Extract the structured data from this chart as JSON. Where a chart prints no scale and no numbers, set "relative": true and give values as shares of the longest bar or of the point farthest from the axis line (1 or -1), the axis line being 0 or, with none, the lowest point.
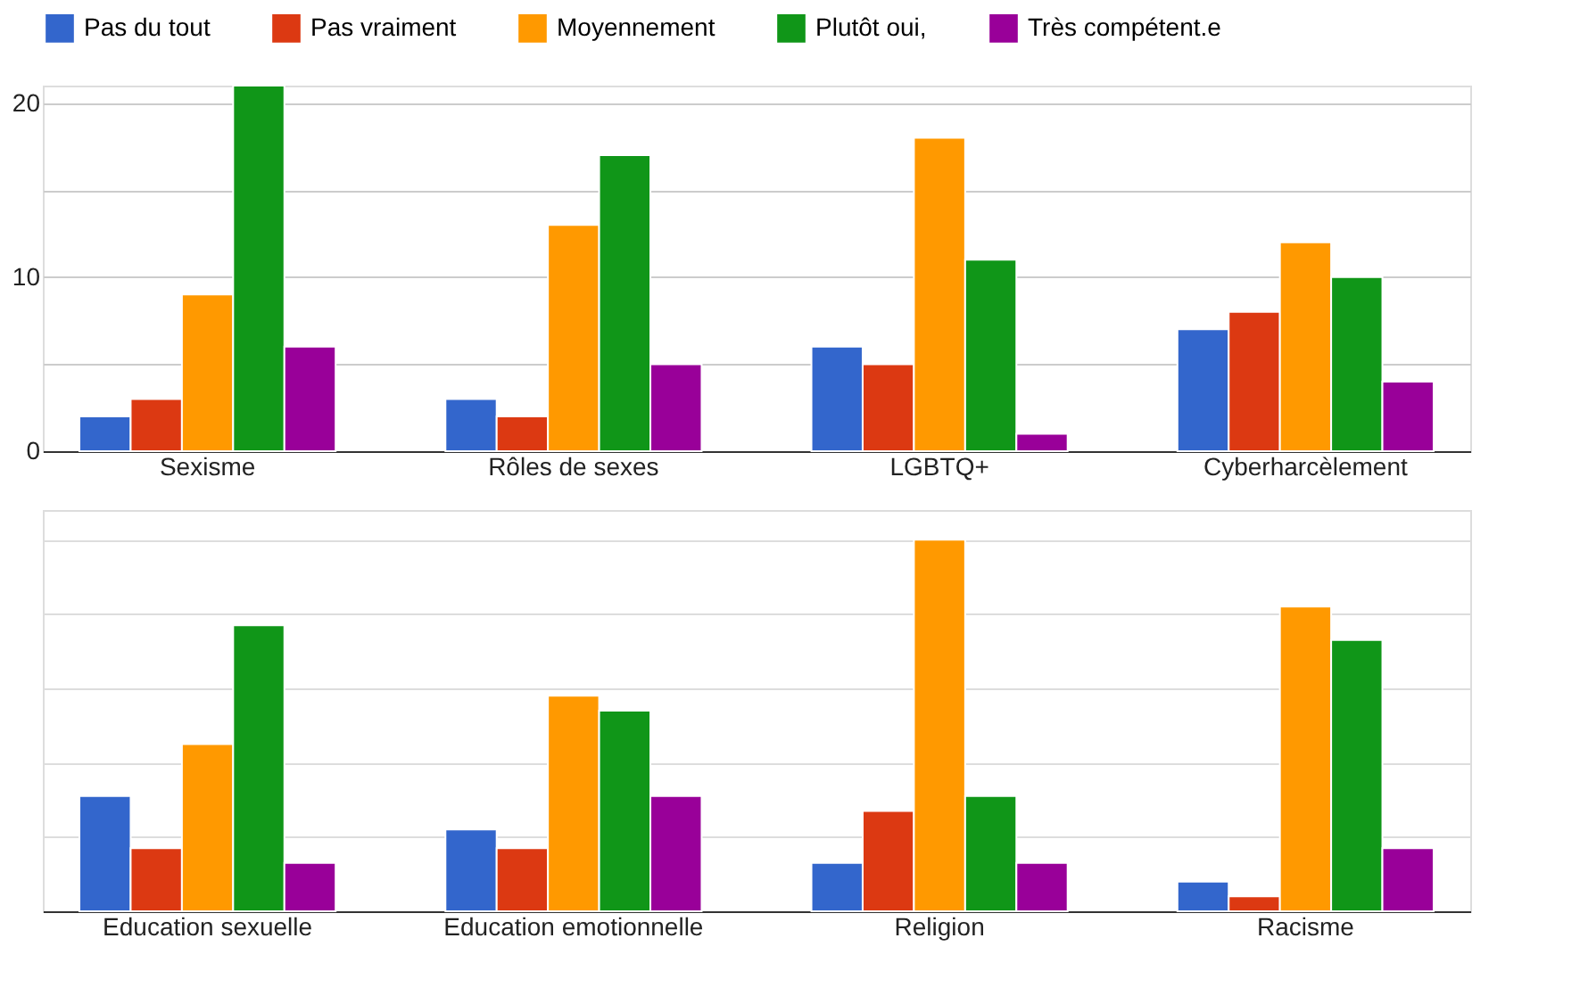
{
  "chart_data": [
    {
      "type": "bar",
      "categories": [
        "Sexisme",
        "Rôles de sexes",
        "LGBTQ+",
        "Cyberharcèlement"
      ],
      "series": [
        {
          "name": "Pas du tout",
          "color": "#3366cc",
          "values": [
            2,
            3,
            6,
            7
          ]
        },
        {
          "name": "Pas vraiment",
          "color": "#dc3912",
          "values": [
            3,
            2,
            5,
            8
          ]
        },
        {
          "name": "Moyennement",
          "color": "#ff9900",
          "values": [
            9,
            13,
            18,
            12
          ]
        },
        {
          "name": "Plutôt oui,",
          "color": "#109618",
          "values": [
            21,
            17,
            11,
            10
          ]
        },
        {
          "name": "Très compétent.e",
          "color": "#990099",
          "values": [
            6,
            5,
            1,
            4
          ]
        }
      ],
      "ylim": [
        0,
        21
      ],
      "yticks": [
        0,
        {
          "value": 5,
          "label": null
        },
        10,
        {
          "value": 15,
          "label": null
        },
        20
      ],
      "grid": "y",
      "legend": "top"
    },
    {
      "type": "bar",
      "categories": [
        "Education sexuelle",
        "Education emotionnelle",
        "Religion",
        "Racisme"
      ],
      "relative": true,
      "series": [
        {
          "color": "#3366cc",
          "values": [
            0.31,
            0.22,
            0.13,
            0.08
          ]
        },
        {
          "color": "#dc3912",
          "values": [
            0.17,
            0.17,
            0.27,
            0.04
          ]
        },
        {
          "color": "#ff9900",
          "values": [
            0.45,
            0.58,
            1,
            0.82
          ]
        },
        {
          "color": "#109618",
          "values": [
            0.77,
            0.54,
            0.31,
            0.73
          ]
        },
        {
          "color": "#990099",
          "values": [
            0.13,
            0.31,
            0.13,
            0.17
          ]
        }
      ],
      "grid": "y",
      "tick_labels": "x"
    }
  ]
}
